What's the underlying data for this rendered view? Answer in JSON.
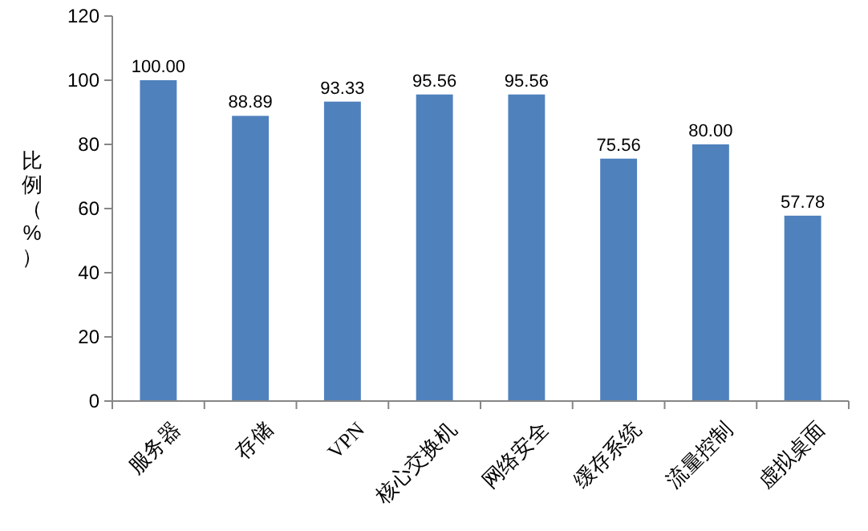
{
  "chart_data": {
    "type": "bar",
    "ylabel": "比例（%）",
    "categories": [
      "服务器",
      "存储",
      "VPN",
      "核心交换机",
      "网络安全",
      "缓存系统",
      "流量控制",
      "虚拟桌面"
    ],
    "values": [
      100.0,
      88.89,
      93.33,
      95.56,
      95.56,
      75.56,
      80.0,
      57.78
    ],
    "color": "#4f81bd",
    "ylim": [
      0,
      120
    ],
    "yticks": [
      0,
      20,
      40,
      60,
      80,
      100,
      120
    ],
    "data_labels": true,
    "value_labels": [
      "100.00",
      "88.89",
      "93.33",
      "95.56",
      "95.56",
      "75.56",
      "80.00",
      "57.78"
    ]
  }
}
